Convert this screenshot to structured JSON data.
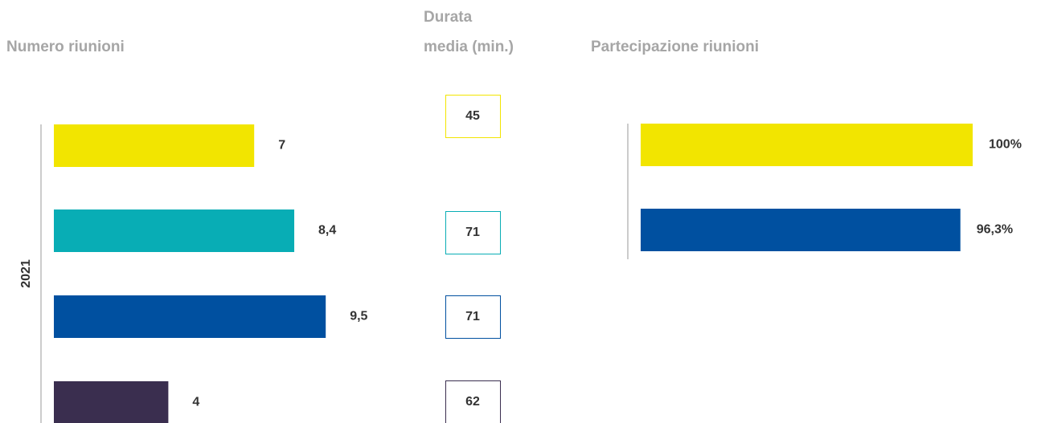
{
  "chart_data": [
    {
      "type": "hbar",
      "title": "Numero riunioni",
      "group_label": "2021",
      "categories": [
        null,
        null,
        null,
        null
      ],
      "values": [
        7,
        8.4,
        9.5,
        4
      ],
      "value_labels": [
        "7",
        "8,4",
        "9,5",
        "4"
      ],
      "colors": [
        "#f2e500",
        "#08adb5",
        "#0050a0",
        "#3a2e4f"
      ]
    },
    {
      "type": "boxes",
      "title": "Durata media (min.)",
      "values": [
        45,
        71,
        71,
        62
      ],
      "colors": [
        "#f2e500",
        "#08adb5",
        "#0050a0",
        "#3a2e4f"
      ]
    },
    {
      "type": "hbar",
      "title": "Partecipazione riunioni",
      "categories": [
        null,
        null
      ],
      "values": [
        100,
        96.3
      ],
      "value_labels": [
        "100%",
        "96,3%"
      ],
      "colors": [
        "#f2e500",
        "#0050a0"
      ]
    }
  ]
}
